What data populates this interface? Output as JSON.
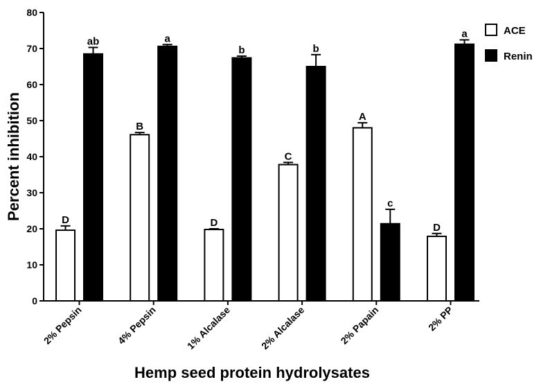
{
  "chart_data": {
    "type": "bar",
    "title": "",
    "xlabel": "Hemp seed protein hydrolysates",
    "ylabel": "Percent inhibition",
    "ylim": [
      0,
      80
    ],
    "yticks": [
      0,
      10,
      20,
      30,
      40,
      50,
      60,
      70,
      80
    ],
    "grid": false,
    "legend_position": "top-right",
    "categories": [
      "2% Pepsin",
      "4% Pepsin",
      "1% Alcalase",
      "2% Alcalase",
      "2% Papain",
      "2% PP"
    ],
    "series": [
      {
        "name": "ACE",
        "fill": "#ffffff",
        "stroke": "#000000",
        "values": [
          19.6,
          46.1,
          19.8,
          37.8,
          48.0,
          17.9
        ],
        "errors": [
          1.2,
          0.6,
          0.2,
          0.6,
          1.4,
          0.8
        ],
        "labels": [
          "D",
          "B",
          "D",
          "C",
          "A",
          "D"
        ]
      },
      {
        "name": "Renin",
        "fill": "#000000",
        "stroke": "#000000",
        "values": [
          68.5,
          70.6,
          67.4,
          65.0,
          21.4,
          71.2
        ],
        "errors": [
          1.8,
          0.5,
          0.5,
          3.3,
          4.0,
          1.2
        ],
        "labels": [
          "ab",
          "a",
          "b",
          "b",
          "c",
          "a"
        ]
      }
    ]
  }
}
